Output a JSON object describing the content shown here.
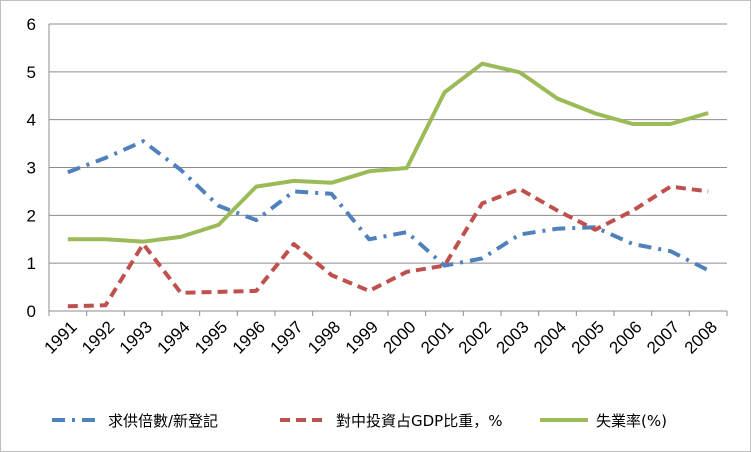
{
  "chart_data": {
    "type": "line",
    "title": "",
    "xlabel": "",
    "ylabel": "",
    "ylim": [
      0,
      6
    ],
    "yticks": [
      "0",
      "1",
      "2",
      "3",
      "4",
      "5",
      "6"
    ],
    "grid": true,
    "legend_position": "bottom",
    "categories": [
      "1991",
      "1992",
      "1993",
      "1994",
      "1995",
      "1996",
      "1997",
      "1998",
      "1999",
      "2000",
      "2001",
      "2002",
      "2003",
      "2004",
      "2005",
      "2006",
      "2007",
      "2008"
    ],
    "series": [
      {
        "name": "求供倍數/新登記",
        "color": "#4F81BD",
        "style": "dashdot",
        "values": [
          2.9,
          3.2,
          3.55,
          2.95,
          2.2,
          1.9,
          2.5,
          2.45,
          1.5,
          1.65,
          0.95,
          1.1,
          1.6,
          1.72,
          1.75,
          1.4,
          1.25,
          0.85
        ]
      },
      {
        "name": "對中投資占GDP比重，%",
        "color": "#C0504D",
        "style": "dash",
        "values": [
          0.1,
          0.12,
          1.4,
          0.38,
          0.4,
          0.42,
          1.4,
          0.75,
          0.42,
          0.82,
          0.95,
          2.25,
          2.55,
          2.1,
          1.7,
          2.1,
          2.6,
          2.5
        ]
      },
      {
        "name": "失業率(%)",
        "color": "#9BBB59",
        "style": "solid",
        "values": [
          1.5,
          1.5,
          1.45,
          1.55,
          1.8,
          2.6,
          2.72,
          2.68,
          2.92,
          2.99,
          4.57,
          5.17,
          4.99,
          4.44,
          4.13,
          3.91,
          3.91,
          4.14
        ]
      }
    ]
  }
}
